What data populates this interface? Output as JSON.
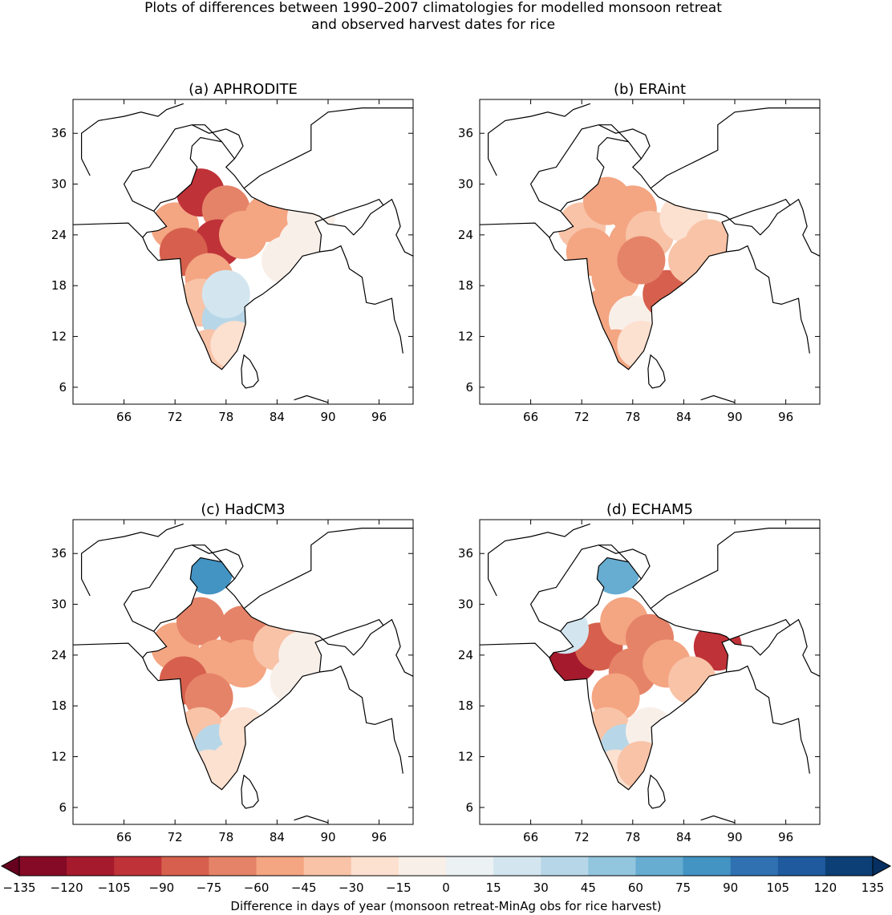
{
  "title_line1": "Plots of differences between 1990–2007 climatologies for modelled monsoon retreat",
  "title_line2": "and observed harvest dates for rice",
  "chart_data": {
    "type": "map",
    "xlim": [
      60,
      100
    ],
    "ylim": [
      4,
      40
    ],
    "x_ticks": [
      66,
      72,
      78,
      84,
      90,
      96
    ],
    "y_ticks": [
      6,
      12,
      18,
      24,
      30,
      36
    ],
    "panels": [
      {
        "title": "(a) APHRODITE",
        "patches": [
          [
            72,
            25,
            -60
          ],
          [
            75,
            29,
            -105
          ],
          [
            78,
            27,
            -75
          ],
          [
            77,
            23,
            -105
          ],
          [
            73,
            22,
            -90
          ],
          [
            80,
            24,
            -60
          ],
          [
            83,
            26,
            -60
          ],
          [
            76,
            19,
            -60
          ],
          [
            75,
            16,
            -45
          ],
          [
            78,
            14,
            30
          ],
          [
            78,
            17,
            15
          ],
          [
            85,
            21,
            -15
          ],
          [
            87,
            23,
            -15
          ],
          [
            88,
            26,
            -15
          ],
          [
            76,
            10,
            -45
          ],
          [
            79,
            11,
            -30
          ]
        ]
      },
      {
        "title": "(b) ERAint",
        "patches": [
          [
            72,
            25,
            -45
          ],
          [
            75,
            28,
            -60
          ],
          [
            78,
            27,
            -60
          ],
          [
            78,
            23,
            -60
          ],
          [
            73,
            22,
            -60
          ],
          [
            80,
            24,
            -45
          ],
          [
            84,
            26,
            -30
          ],
          [
            76,
            19,
            -60
          ],
          [
            75,
            15,
            -60
          ],
          [
            78,
            14,
            -15
          ],
          [
            82,
            17,
            -90
          ],
          [
            85,
            21,
            -45
          ],
          [
            87,
            23,
            -45
          ],
          [
            76,
            10,
            -60
          ],
          [
            79,
            11,
            -30
          ],
          [
            79,
            21,
            -75
          ]
        ]
      },
      {
        "title": "(c) HadCM3",
        "patches": [
          [
            72,
            25,
            -60
          ],
          [
            75,
            28,
            -75
          ],
          [
            80,
            27,
            -75
          ],
          [
            77,
            23,
            -60
          ],
          [
            73,
            21,
            -90
          ],
          [
            80,
            23,
            -60
          ],
          [
            84,
            25,
            -45
          ],
          [
            76,
            19,
            -75
          ],
          [
            75,
            15,
            -45
          ],
          [
            77,
            13,
            30
          ],
          [
            80,
            15,
            -30
          ],
          [
            86,
            21,
            -15
          ],
          [
            87,
            24,
            -15
          ],
          [
            76,
            10,
            -30
          ],
          [
            79,
            11,
            -30
          ],
          [
            76,
            34,
            75
          ]
        ]
      },
      {
        "title": "(d) ECHAM5",
        "patches": [
          [
            71,
            23.5,
            -120
          ],
          [
            74,
            25,
            -90
          ],
          [
            77,
            28,
            -60
          ],
          [
            80,
            26,
            -75
          ],
          [
            78,
            22,
            -75
          ],
          [
            82,
            23,
            -60
          ],
          [
            88,
            25,
            -105
          ],
          [
            85,
            21,
            -45
          ],
          [
            76,
            19,
            -60
          ],
          [
            75,
            15,
            -45
          ],
          [
            77,
            13,
            30
          ],
          [
            80,
            15,
            -15
          ],
          [
            70,
            27,
            15
          ],
          [
            76,
            10,
            -30
          ],
          [
            79,
            11,
            -45
          ],
          [
            76,
            34,
            60
          ]
        ]
      }
    ],
    "colorbar": {
      "label": "Difference in days of year (monsoon retreat-MinAg obs for rice harvest)",
      "ticks": [
        -135,
        -120,
        -105,
        -90,
        -75,
        -60,
        -45,
        -30,
        -15,
        0,
        15,
        30,
        45,
        60,
        75,
        90,
        105,
        120,
        135
      ],
      "colors": [
        "#850a25",
        "#a51a2c",
        "#bf3238",
        "#d6604d",
        "#e58368",
        "#f4a582",
        "#f8c3a7",
        "#fce0d0",
        "#f9efe9",
        "#ecf1f4",
        "#d3e6f0",
        "#b7d7e8",
        "#92c5de",
        "#67acd1",
        "#4393c3",
        "#2f71b1",
        "#1e5a9d",
        "#0c3f75"
      ],
      "extend_low": "#67001f",
      "extend_high": "#053061"
    }
  }
}
